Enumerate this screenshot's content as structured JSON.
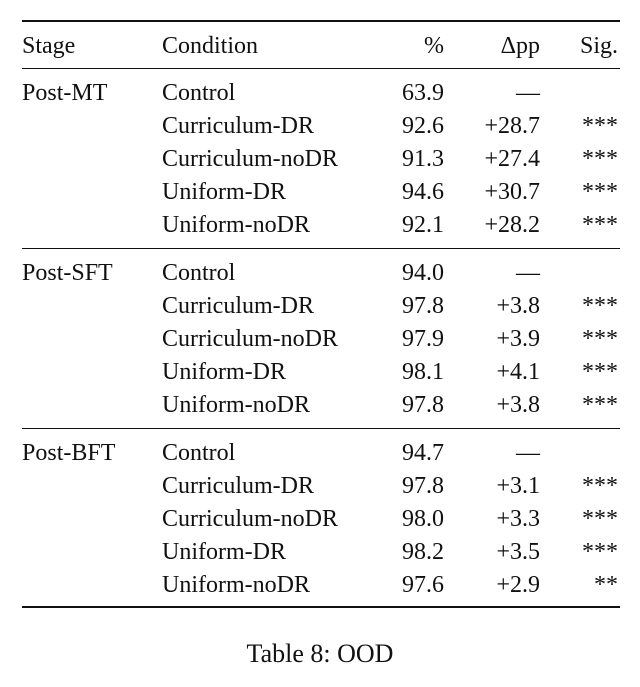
{
  "table": {
    "headers": {
      "stage": "Stage",
      "condition": "Condition",
      "pct": "%",
      "dpp": "Δpp",
      "sig": "Sig."
    },
    "groups": [
      {
        "stage": "Post-MT",
        "rows": [
          {
            "condition": "Control",
            "pct": "63.9",
            "dpp": "—",
            "sig": ""
          },
          {
            "condition": "Curriculum-DR",
            "pct": "92.6",
            "dpp": "+28.7",
            "sig": "***"
          },
          {
            "condition": "Curriculum-noDR",
            "pct": "91.3",
            "dpp": "+27.4",
            "sig": "***"
          },
          {
            "condition": "Uniform-DR",
            "pct": "94.6",
            "dpp": "+30.7",
            "sig": "***"
          },
          {
            "condition": "Uniform-noDR",
            "pct": "92.1",
            "dpp": "+28.2",
            "sig": "***"
          }
        ]
      },
      {
        "stage": "Post-SFT",
        "rows": [
          {
            "condition": "Control",
            "pct": "94.0",
            "dpp": "—",
            "sig": ""
          },
          {
            "condition": "Curriculum-DR",
            "pct": "97.8",
            "dpp": "+3.8",
            "sig": "***"
          },
          {
            "condition": "Curriculum-noDR",
            "pct": "97.9",
            "dpp": "+3.9",
            "sig": "***"
          },
          {
            "condition": "Uniform-DR",
            "pct": "98.1",
            "dpp": "+4.1",
            "sig": "***"
          },
          {
            "condition": "Uniform-noDR",
            "pct": "97.8",
            "dpp": "+3.8",
            "sig": "***"
          }
        ]
      },
      {
        "stage": "Post-BFT",
        "rows": [
          {
            "condition": "Control",
            "pct": "94.7",
            "dpp": "—",
            "sig": ""
          },
          {
            "condition": "Curriculum-DR",
            "pct": "97.8",
            "dpp": "+3.1",
            "sig": "***"
          },
          {
            "condition": "Curriculum-noDR",
            "pct": "98.0",
            "dpp": "+3.3",
            "sig": "***"
          },
          {
            "condition": "Uniform-DR",
            "pct": "98.2",
            "dpp": "+3.5",
            "sig": "***"
          },
          {
            "condition": "Uniform-noDR",
            "pct": "97.6",
            "dpp": "+2.9",
            "sig": "**"
          }
        ]
      }
    ]
  },
  "caption": "Table 8: OOD"
}
